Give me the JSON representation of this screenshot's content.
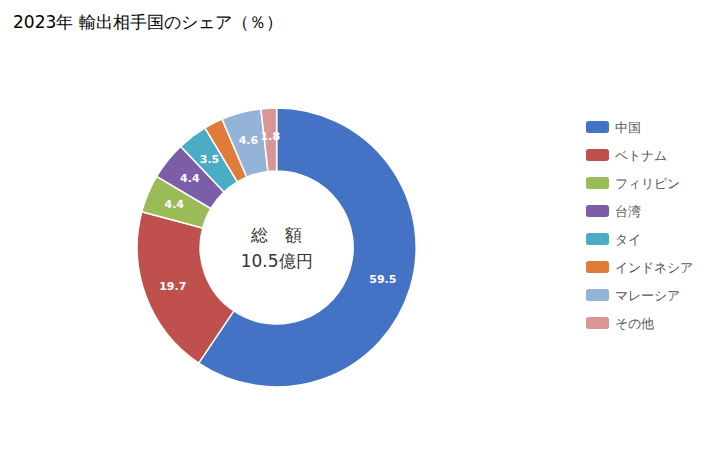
{
  "chart_data": {
    "type": "pie",
    "title": "2023年 輸出相手国のシェア（％）",
    "annotations": [
      "総　額",
      "10.5億円"
    ],
    "categories": [
      "中国",
      "ベトナム",
      "フィリピン",
      "台湾",
      "タイ",
      "インドネシア",
      "マレーシア",
      "その他"
    ],
    "values": [
      59.5,
      19.7,
      4.4,
      4.4,
      3.5,
      2.2,
      4.6,
      1.8
    ],
    "colors": [
      "#4472C4",
      "#C0504D",
      "#9BBB59",
      "#7B5EA7",
      "#4BACC6",
      "#E07B39",
      "#95B3D7",
      "#D99694"
    ],
    "data_labels": true,
    "legend": "right"
  }
}
